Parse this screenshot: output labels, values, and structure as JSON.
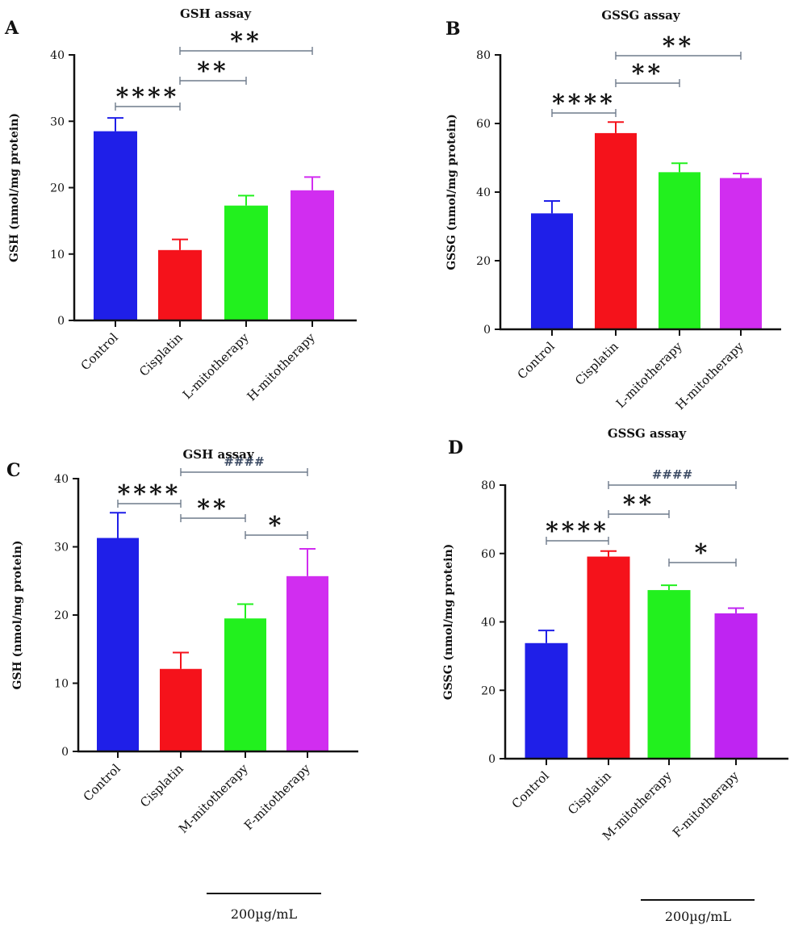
{
  "chart_data": [
    {
      "type": "bar",
      "panel_letter": "A",
      "title": "GSH assay",
      "ylabel": "GSH (nmol/mg protein)",
      "ylim": [
        0,
        40
      ],
      "yticks": [
        0,
        10,
        20,
        30,
        40
      ],
      "categories": [
        "Control",
        "Cisplatin",
        "L-mitotherapy",
        "H-mitotherapy"
      ],
      "values": [
        28.5,
        10.6,
        17.3,
        19.6
      ],
      "errors": [
        2.0,
        1.6,
        1.5,
        2.0
      ],
      "colors": [
        "#1f1fe8",
        "#f5121b",
        "#22f01e",
        "#d12df0"
      ],
      "significance": [
        {
          "from": 0,
          "to": 1,
          "label": "****"
        },
        {
          "from": 1,
          "to": 2,
          "label": "**"
        },
        {
          "from": 1,
          "to": 3,
          "label": "**"
        }
      ]
    },
    {
      "type": "bar",
      "panel_letter": "B",
      "title": "GSSG assay",
      "ylabel": "GSSG (nmol/mg protein)",
      "ylim": [
        0,
        80
      ],
      "yticks": [
        0,
        20,
        40,
        60,
        80
      ],
      "categories": [
        "Control",
        "Cisplatin",
        "L-mitotherapy",
        "H-mitotherapy"
      ],
      "values": [
        33.8,
        57.2,
        45.8,
        44.1
      ],
      "errors": [
        3.6,
        3.2,
        2.6,
        1.3
      ],
      "colors": [
        "#1f1fe8",
        "#f5121b",
        "#22f01e",
        "#d12df0"
      ],
      "significance": [
        {
          "from": 0,
          "to": 1,
          "label": "****"
        },
        {
          "from": 1,
          "to": 2,
          "label": "**"
        },
        {
          "from": 1,
          "to": 3,
          "label": "**"
        }
      ]
    },
    {
      "type": "bar",
      "panel_letter": "C",
      "title": "GSH assay",
      "ylabel": "GSH (nmol/mg protein)",
      "ylim": [
        0,
        40
      ],
      "yticks": [
        0,
        10,
        20,
        30,
        40
      ],
      "categories": [
        "Control",
        "Cisplatin",
        "M-mitotherapy",
        "F-mitotherapy"
      ],
      "values": [
        31.3,
        12.1,
        19.5,
        25.7
      ],
      "errors": [
        3.7,
        2.4,
        2.1,
        4.0
      ],
      "colors": [
        "#1f1fe8",
        "#f5121b",
        "#22f01e",
        "#d12df0"
      ],
      "significance": [
        {
          "from": 0,
          "to": 1,
          "label": "****"
        },
        {
          "from": 1,
          "to": 2,
          "label": "**"
        },
        {
          "from": 2,
          "to": 3,
          "label": "*"
        },
        {
          "from": 1,
          "to": 3,
          "label": "####"
        }
      ]
    },
    {
      "type": "bar",
      "panel_letter": "D",
      "title": "GSSG assay",
      "ylabel": "GSSG (nmol/mg protein)",
      "ylim": [
        0,
        80
      ],
      "yticks": [
        0,
        20,
        40,
        60,
        80
      ],
      "categories": [
        "Control",
        "Cisplatin",
        "M-mitotherapy",
        "F-mitotherapy"
      ],
      "values": [
        33.8,
        59.1,
        49.3,
        42.5
      ],
      "errors": [
        3.7,
        1.6,
        1.4,
        1.5
      ],
      "colors": [
        "#1f1fe8",
        "#f5121b",
        "#22f01e",
        "#bf24f2"
      ],
      "significance": [
        {
          "from": 0,
          "to": 1,
          "label": "****"
        },
        {
          "from": 1,
          "to": 2,
          "label": "**"
        },
        {
          "from": 2,
          "to": 3,
          "label": "*"
        },
        {
          "from": 1,
          "to": 3,
          "label": "####"
        }
      ]
    }
  ],
  "dose_labels": [
    "200µg/mL",
    "200µg/mL"
  ]
}
